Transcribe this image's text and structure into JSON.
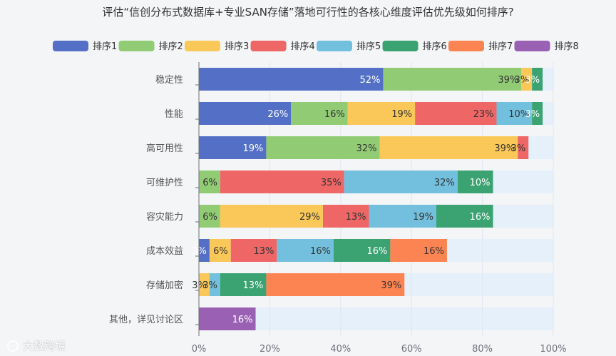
{
  "chart_data": {
    "type": "bar",
    "orientation": "horizontal",
    "stacked": true,
    "title": "评估“信创分布式数据库+专业SAN存储”落地可行性的各核心维度评估优先级如何排序?",
    "categories": [
      "稳定性",
      "性能",
      "高可用性",
      "可维护性",
      "容灾能力",
      "成本效益",
      "存储加密",
      "其他，详见讨论区"
    ],
    "series": [
      {
        "name": "排序1",
        "color": "#5470c6",
        "values": [
          52,
          26,
          19,
          null,
          null,
          3,
          null,
          null
        ],
        "labels": [
          "52%",
          "26%",
          "19%",
          "",
          "",
          "3%",
          "",
          ""
        ]
      },
      {
        "name": "排序2",
        "color": "#91cc75",
        "values": [
          39,
          16,
          32,
          6,
          6,
          null,
          null,
          null
        ],
        "labels": [
          "39%",
          "16%",
          "32%",
          "6%",
          "6%",
          "",
          "",
          ""
        ]
      },
      {
        "name": "排序3",
        "color": "#fac858",
        "values": [
          3,
          19,
          39,
          null,
          29,
          6,
          3,
          null
        ],
        "labels": [
          "3%",
          "19%",
          "39%",
          "",
          "29%",
          "6%",
          "3%",
          ""
        ]
      },
      {
        "name": "排序4",
        "color": "#ee6666",
        "values": [
          null,
          23,
          3,
          35,
          13,
          13,
          null,
          null
        ],
        "labels": [
          "",
          "23%",
          "3%",
          "35%",
          "13%",
          "13%",
          "",
          ""
        ]
      },
      {
        "name": "排序5",
        "color": "#73c0de",
        "values": [
          null,
          10,
          null,
          32,
          19,
          16,
          3,
          null
        ],
        "labels": [
          "",
          "10%",
          "",
          "32%",
          "19%",
          "16%",
          "3%",
          ""
        ]
      },
      {
        "name": "排序6",
        "color": "#3ba272",
        "values": [
          3,
          3,
          null,
          10,
          16,
          16,
          13,
          null
        ],
        "labels": [
          "3%",
          "3%",
          "",
          "10%",
          "16%",
          "16%",
          "13%",
          ""
        ]
      },
      {
        "name": "排序7",
        "color": "#fc8452",
        "values": [
          null,
          null,
          null,
          null,
          null,
          16,
          39,
          null
        ],
        "labels": [
          "",
          "",
          "",
          "",
          "",
          "16%",
          "39%",
          ""
        ]
      },
      {
        "name": "排序8",
        "color": "#9a60b4",
        "values": [
          null,
          null,
          null,
          null,
          null,
          null,
          null,
          16
        ],
        "labels": [
          "",
          "",
          "",
          "",
          "",
          "",
          "",
          "16%"
        ]
      }
    ],
    "xlim": [
      0,
      100
    ],
    "x_ticks": [
      "0%",
      "20%",
      "40%",
      "60%",
      "80%",
      "100%"
    ],
    "legend_position": "top",
    "track_color": "#e5f0fb",
    "grid": true
  },
  "watermark": "大数跨境"
}
